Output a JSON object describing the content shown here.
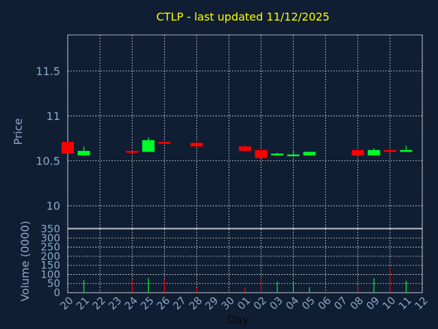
{
  "chart_data": {
    "type": "candlestick",
    "title": "CTLP - last updated 11/12/2025",
    "xlabel": "Day",
    "grid": true,
    "colors": {
      "background": "#0f1e33",
      "title": "#ffff00",
      "axis_text": "#8fa9c6",
      "up": "#00ff2a",
      "down": "#ff0000",
      "grid": "#ffffff"
    },
    "days": [
      "20",
      "21",
      "22",
      "23",
      "24",
      "25",
      "26",
      "27",
      "28",
      "29",
      "30",
      "01",
      "02",
      "03",
      "04",
      "05",
      "06",
      "07",
      "08",
      "09",
      "10",
      "11",
      "12"
    ],
    "price_panel": {
      "ylabel": "Price",
      "ylim": [
        9.75,
        11.9
      ],
      "ticks": [
        10,
        10.5,
        11,
        11.5
      ],
      "tick_labels": [
        "10",
        "10.5",
        "11",
        "11.5"
      ]
    },
    "volume_panel": {
      "ylabel": "Volume (0000)",
      "ylim": [
        0,
        350
      ],
      "ticks": [
        0,
        50,
        100,
        150,
        200,
        250,
        300,
        350
      ],
      "tick_labels": [
        "0",
        "50",
        "100",
        "150",
        "200",
        "250",
        "300",
        "350"
      ]
    },
    "candles": [
      {
        "day": "20",
        "open": 10.71,
        "high": 10.71,
        "low": 10.58,
        "close": 10.58,
        "volume": 0
      },
      {
        "day": "21",
        "open": 10.56,
        "high": 10.66,
        "low": 10.55,
        "close": 10.61,
        "volume": 70
      },
      {
        "day": "24",
        "open": 10.61,
        "high": 10.61,
        "low": 10.59,
        "close": 10.59,
        "volume": 70
      },
      {
        "day": "25",
        "open": 10.6,
        "high": 10.76,
        "low": 10.6,
        "close": 10.73,
        "volume": 80
      },
      {
        "day": "26",
        "open": 10.71,
        "high": 10.72,
        "low": 10.69,
        "close": 10.69,
        "volume": 70
      },
      {
        "day": "28",
        "open": 10.7,
        "high": 10.71,
        "low": 10.66,
        "close": 10.66,
        "volume": 25
      },
      {
        "day": "01",
        "open": 10.66,
        "high": 10.67,
        "low": 10.6,
        "close": 10.61,
        "volume": 30
      },
      {
        "day": "02",
        "open": 10.62,
        "high": 10.62,
        "low": 10.53,
        "close": 10.53,
        "volume": 85
      },
      {
        "day": "03",
        "open": 10.57,
        "high": 10.59,
        "low": 10.56,
        "close": 10.58,
        "volume": 60
      },
      {
        "day": "04",
        "open": 10.56,
        "high": 10.62,
        "low": 10.55,
        "close": 10.57,
        "volume": 60
      },
      {
        "day": "05",
        "open": 10.56,
        "high": 10.6,
        "low": 10.56,
        "close": 10.6,
        "volume": 30
      },
      {
        "day": "08",
        "open": 10.62,
        "high": 10.62,
        "low": 10.55,
        "close": 10.56,
        "volume": 35
      },
      {
        "day": "09",
        "open": 10.56,
        "high": 10.64,
        "low": 10.56,
        "close": 10.62,
        "volume": 80
      },
      {
        "day": "10",
        "open": 10.62,
        "high": 10.63,
        "low": 10.59,
        "close": 10.6,
        "volume": 140
      },
      {
        "day": "11",
        "open": 10.6,
        "high": 10.67,
        "low": 10.6,
        "close": 10.62,
        "volume": 65
      }
    ]
  }
}
